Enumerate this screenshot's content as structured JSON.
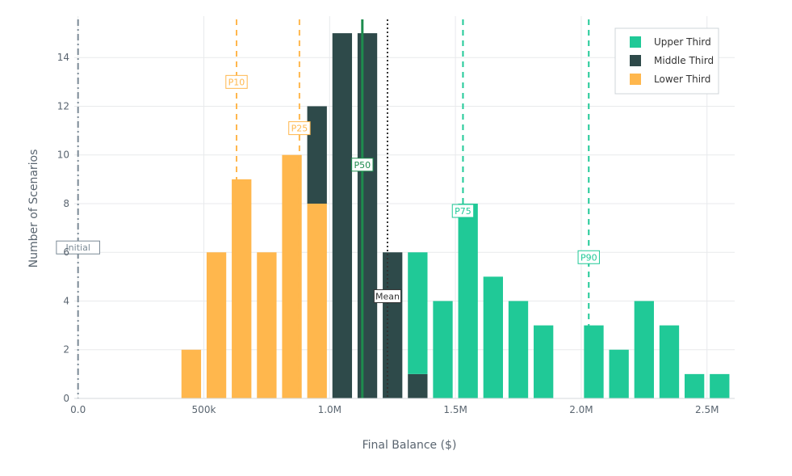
{
  "chart_data": {
    "type": "bar",
    "stacked": true,
    "xlabel": "Final Balance ($)",
    "ylabel": "Number of Scenarios",
    "xlim": [
      -15000,
      2610000
    ],
    "ylim": [
      0,
      15.7
    ],
    "grid": true,
    "legend_position": "top-right",
    "bin_width": 100000,
    "x_ticks": [
      {
        "value": 0,
        "label": "0.0"
      },
      {
        "value": 500000,
        "label": "500k"
      },
      {
        "value": 1000000,
        "label": "1.0M"
      },
      {
        "value": 1500000,
        "label": "1.5M"
      },
      {
        "value": 2000000,
        "label": "2.0M"
      },
      {
        "value": 2500000,
        "label": "2.5M"
      }
    ],
    "y_ticks": [
      {
        "value": 0,
        "label": "0"
      },
      {
        "value": 2,
        "label": "2"
      },
      {
        "value": 4,
        "label": "4"
      },
      {
        "value": 6,
        "label": "6"
      },
      {
        "value": 8,
        "label": "8"
      },
      {
        "value": 10,
        "label": "10"
      },
      {
        "value": 12,
        "label": "12"
      },
      {
        "value": 14,
        "label": "14"
      }
    ],
    "series": [
      {
        "name": "Lower Third",
        "color": "#ffb74d",
        "bars": [
          {
            "x": 450000,
            "y": 2
          },
          {
            "x": 550000,
            "y": 6
          },
          {
            "x": 650000,
            "y": 9
          },
          {
            "x": 750000,
            "y": 6
          },
          {
            "x": 850000,
            "y": 10
          },
          {
            "x": 950000,
            "y": 8
          }
        ]
      },
      {
        "name": "Middle Third",
        "color": "#2e4a4a",
        "bars": [
          {
            "x": 950000,
            "y": 4
          },
          {
            "x": 1050000,
            "y": 15
          },
          {
            "x": 1150000,
            "y": 15
          },
          {
            "x": 1250000,
            "y": 6
          },
          {
            "x": 1350000,
            "y": 1
          }
        ]
      },
      {
        "name": "Upper Third",
        "color": "#20c997",
        "bars": [
          {
            "x": 1350000,
            "y": 5
          },
          {
            "x": 1450000,
            "y": 4
          },
          {
            "x": 1550000,
            "y": 8
          },
          {
            "x": 1650000,
            "y": 5
          },
          {
            "x": 1750000,
            "y": 4
          },
          {
            "x": 1850000,
            "y": 3
          },
          {
            "x": 2050000,
            "y": 3
          },
          {
            "x": 2150000,
            "y": 2
          },
          {
            "x": 2250000,
            "y": 4
          },
          {
            "x": 2350000,
            "y": 3
          },
          {
            "x": 2450000,
            "y": 1
          },
          {
            "x": 2550000,
            "y": 1
          }
        ]
      }
    ],
    "legend": [
      {
        "name": "Upper Third",
        "color": "#20c997"
      },
      {
        "name": "Middle Third",
        "color": "#2e4a4a"
      },
      {
        "name": "Lower Third",
        "color": "#ffb74d"
      }
    ],
    "reference_lines": [
      {
        "label": "Initial",
        "x": 0,
        "color": "#7b8a96",
        "dash": "dashdot",
        "label_y": 6.2
      },
      {
        "label": "P10",
        "x": 630000,
        "color": "#ffb74d",
        "dash": "dash",
        "label_y": 13
      },
      {
        "label": "P25",
        "x": 880000,
        "color": "#ffb74d",
        "dash": "dash",
        "label_y": 11.1
      },
      {
        "label": "P50",
        "x": 1130000,
        "color": "#1e8c4e",
        "dash": "solid",
        "label_y": 9.6
      },
      {
        "label": "Mean",
        "x": 1230000,
        "color": "#333333",
        "dash": "dot",
        "label_y": 4.2
      },
      {
        "label": "P75",
        "x": 1530000,
        "color": "#20c997",
        "dash": "dash",
        "label_y": 7.7
      },
      {
        "label": "P90",
        "x": 2030000,
        "color": "#20c997",
        "dash": "dash",
        "label_y": 5.8
      }
    ]
  }
}
